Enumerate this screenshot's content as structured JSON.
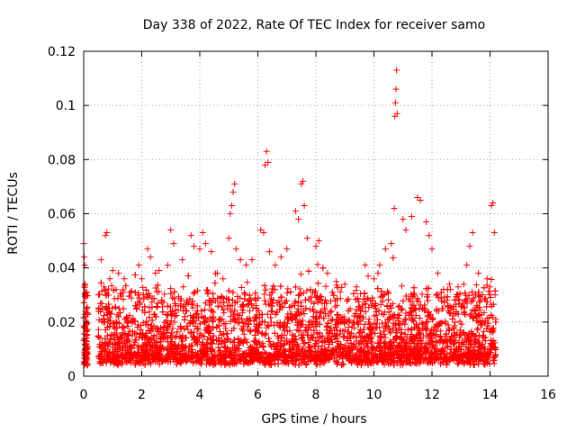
{
  "chart_data": {
    "type": "scatter",
    "title": "Day 338 of 2022, Rate Of TEC Index for receiver samo",
    "xlabel": "GPS time / hours",
    "ylabel": "ROTI / TECUs",
    "xlim": [
      0,
      16
    ],
    "ylim": [
      0,
      0.12
    ],
    "xticks": [
      0,
      2,
      4,
      6,
      8,
      10,
      12,
      14,
      16
    ],
    "xtick_labels": [
      "0",
      "2",
      "4",
      "6",
      "8",
      "10",
      "12",
      "14",
      "16"
    ],
    "yticks": [
      0,
      0.02,
      0.04,
      0.06,
      0.08,
      0.1,
      0.12
    ],
    "ytick_labels": [
      "0",
      "0.02",
      "0.04",
      "0.06",
      "0.08",
      "0.1",
      "0.12"
    ],
    "grid": true,
    "marker": "+",
    "series": [
      {
        "name": "ROTI",
        "color": "#ff0000",
        "points": [
          [
            0.0,
            0.049
          ],
          [
            0.02,
            0.044
          ],
          [
            0.04,
            0.041
          ],
          [
            0.05,
            0.034
          ],
          [
            0.06,
            0.029
          ],
          [
            0.07,
            0.024
          ],
          [
            0.08,
            0.019
          ],
          [
            0.09,
            0.015
          ],
          [
            0.1,
            0.012
          ],
          [
            0.11,
            0.009
          ],
          [
            0.12,
            0.006
          ],
          [
            0.13,
            0.004
          ],
          [
            0.6,
            0.043
          ],
          [
            0.7,
            0.033
          ],
          [
            0.75,
            0.052
          ],
          [
            0.8,
            0.053
          ],
          [
            0.9,
            0.036
          ],
          [
            1.0,
            0.039
          ],
          [
            1.2,
            0.038
          ],
          [
            1.4,
            0.036
          ],
          [
            1.6,
            0.031
          ],
          [
            1.9,
            0.041
          ],
          [
            2.0,
            0.036
          ],
          [
            2.2,
            0.047
          ],
          [
            2.3,
            0.044
          ],
          [
            2.6,
            0.039
          ],
          [
            2.9,
            0.041
          ],
          [
            3.0,
            0.054
          ],
          [
            3.1,
            0.049
          ],
          [
            3.4,
            0.043
          ],
          [
            3.7,
            0.052
          ],
          [
            3.8,
            0.048
          ],
          [
            4.0,
            0.047
          ],
          [
            4.1,
            0.053
          ],
          [
            4.2,
            0.049
          ],
          [
            4.4,
            0.046
          ],
          [
            4.6,
            0.038
          ],
          [
            4.8,
            0.036
          ],
          [
            5.0,
            0.051
          ],
          [
            5.05,
            0.06
          ],
          [
            5.1,
            0.063
          ],
          [
            5.15,
            0.068
          ],
          [
            5.2,
            0.071
          ],
          [
            5.25,
            0.047
          ],
          [
            5.4,
            0.043
          ],
          [
            5.6,
            0.041
          ],
          [
            5.8,
            0.043
          ],
          [
            6.1,
            0.054
          ],
          [
            6.2,
            0.053
          ],
          [
            6.25,
            0.078
          ],
          [
            6.3,
            0.083
          ],
          [
            6.35,
            0.079
          ],
          [
            6.4,
            0.046
          ],
          [
            6.6,
            0.041
          ],
          [
            6.8,
            0.044
          ],
          [
            7.0,
            0.047
          ],
          [
            7.3,
            0.061
          ],
          [
            7.4,
            0.058
          ],
          [
            7.5,
            0.071
          ],
          [
            7.55,
            0.072
          ],
          [
            7.6,
            0.063
          ],
          [
            7.7,
            0.051
          ],
          [
            8.0,
            0.048
          ],
          [
            8.1,
            0.05
          ],
          [
            8.4,
            0.038
          ],
          [
            8.7,
            0.035
          ],
          [
            9.0,
            0.034
          ],
          [
            9.4,
            0.033
          ],
          [
            9.7,
            0.041
          ],
          [
            9.8,
            0.037
          ],
          [
            10.0,
            0.036
          ],
          [
            10.2,
            0.041
          ],
          [
            10.4,
            0.047
          ],
          [
            10.6,
            0.049
          ],
          [
            10.7,
            0.062
          ],
          [
            10.72,
            0.096
          ],
          [
            10.74,
            0.101
          ],
          [
            10.76,
            0.106
          ],
          [
            10.78,
            0.113
          ],
          [
            10.8,
            0.097
          ],
          [
            11.0,
            0.058
          ],
          [
            11.1,
            0.054
          ],
          [
            11.3,
            0.059
          ],
          [
            11.5,
            0.066
          ],
          [
            11.6,
            0.065
          ],
          [
            11.8,
            0.057
          ],
          [
            11.9,
            0.052
          ],
          [
            12.0,
            0.047
          ],
          [
            12.2,
            0.038
          ],
          [
            12.6,
            0.034
          ],
          [
            12.9,
            0.033
          ],
          [
            13.2,
            0.041
          ],
          [
            13.3,
            0.048
          ],
          [
            13.4,
            0.053
          ],
          [
            13.6,
            0.038
          ],
          [
            13.9,
            0.036
          ],
          [
            14.05,
            0.063
          ],
          [
            14.1,
            0.064
          ],
          [
            14.15,
            0.053
          ],
          [
            14.2,
            0.021
          ]
        ]
      }
    ],
    "dense_band": {
      "description": "thousands of overlapping ROTI samples across the observed interval",
      "x_range": [
        0.5,
        14.2
      ],
      "y_range": [
        0.002,
        0.03
      ],
      "gaps_x": [
        [
          0.15,
          0.5
        ]
      ]
    }
  }
}
